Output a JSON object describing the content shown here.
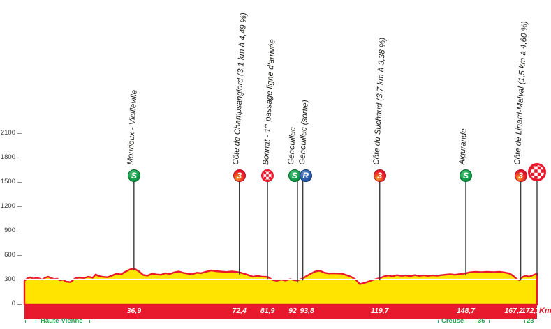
{
  "chart_data": {
    "type": "area",
    "description": "Cycling stage elevation profile",
    "x_unit_label": "Km",
    "km_total": 172.7,
    "y_axis": {
      "ticks": [
        2100,
        1800,
        1500,
        1200,
        900,
        600,
        300,
        0
      ]
    },
    "profile": [
      [
        0,
        280
      ],
      [
        1,
        310
      ],
      [
        2,
        322
      ],
      [
        3,
        305
      ],
      [
        4,
        316
      ],
      [
        5,
        308
      ],
      [
        6,
        295
      ],
      [
        7,
        318
      ],
      [
        8,
        330
      ],
      [
        9,
        314
      ],
      [
        10,
        300
      ],
      [
        11,
        306
      ],
      [
        12,
        286
      ],
      [
        13,
        296
      ],
      [
        14,
        270
      ],
      [
        15.5,
        264
      ],
      [
        17,
        308
      ],
      [
        18.5,
        320
      ],
      [
        20,
        314
      ],
      [
        21.5,
        330
      ],
      [
        23,
        318
      ],
      [
        24,
        358
      ],
      [
        25,
        338
      ],
      [
        26.5,
        328
      ],
      [
        28,
        324
      ],
      [
        29.5,
        344
      ],
      [
        31,
        368
      ],
      [
        32.5,
        358
      ],
      [
        34,
        392
      ],
      [
        35.5,
        418
      ],
      [
        36.9,
        432
      ],
      [
        38.5,
        398
      ],
      [
        40,
        352
      ],
      [
        41.5,
        344
      ],
      [
        43,
        368
      ],
      [
        44.5,
        358
      ],
      [
        46,
        354
      ],
      [
        47.5,
        374
      ],
      [
        49,
        364
      ],
      [
        50.5,
        384
      ],
      [
        52,
        394
      ],
      [
        53.5,
        378
      ],
      [
        55,
        368
      ],
      [
        56.5,
        360
      ],
      [
        58,
        380
      ],
      [
        59.5,
        374
      ],
      [
        61,
        390
      ],
      [
        63,
        408
      ],
      [
        64.5,
        398
      ],
      [
        66,
        394
      ],
      [
        68,
        388
      ],
      [
        70,
        394
      ],
      [
        72.4,
        384
      ],
      [
        74,
        368
      ],
      [
        75.5,
        350
      ],
      [
        77,
        330
      ],
      [
        78.5,
        340
      ],
      [
        80,
        332
      ],
      [
        81.9,
        328
      ],
      [
        83.5,
        292
      ],
      [
        85,
        280
      ],
      [
        86.5,
        296
      ],
      [
        88,
        284
      ],
      [
        89.5,
        300
      ],
      [
        91,
        288
      ],
      [
        92,
        284
      ],
      [
        93.8,
        310
      ],
      [
        95,
        338
      ],
      [
        96.5,
        368
      ],
      [
        98,
        394
      ],
      [
        99.5,
        404
      ],
      [
        101,
        380
      ],
      [
        102.5,
        370
      ],
      [
        104,
        372
      ],
      [
        105.5,
        370
      ],
      [
        107,
        368
      ],
      [
        108.5,
        350
      ],
      [
        110,
        330
      ],
      [
        111.5,
        298
      ],
      [
        113,
        240
      ],
      [
        114.5,
        254
      ],
      [
        116,
        272
      ],
      [
        117.5,
        292
      ],
      [
        119.7,
        312
      ],
      [
        121,
        332
      ],
      [
        122.5,
        346
      ],
      [
        124,
        334
      ],
      [
        125.5,
        350
      ],
      [
        127,
        340
      ],
      [
        128.5,
        346
      ],
      [
        130,
        336
      ],
      [
        131.5,
        350
      ],
      [
        133,
        340
      ],
      [
        134.5,
        346
      ],
      [
        136,
        340
      ],
      [
        137.5,
        346
      ],
      [
        139,
        342
      ],
      [
        140.5,
        350
      ],
      [
        142,
        356
      ],
      [
        143.5,
        360
      ],
      [
        145,
        354
      ],
      [
        146.5,
        362
      ],
      [
        148.7,
        372
      ],
      [
        150,
        384
      ],
      [
        152,
        390
      ],
      [
        154,
        386
      ],
      [
        156,
        390
      ],
      [
        158,
        386
      ],
      [
        160,
        390
      ],
      [
        161.5,
        384
      ],
      [
        163,
        374
      ],
      [
        164,
        358
      ],
      [
        165,
        330
      ],
      [
        166,
        298
      ],
      [
        166.8,
        288
      ],
      [
        167.2,
        310
      ],
      [
        168,
        330
      ],
      [
        169,
        342
      ],
      [
        170,
        330
      ],
      [
        171,
        344
      ],
      [
        172,
        358
      ],
      [
        172.7,
        370
      ]
    ],
    "markers": [
      {
        "id": "mourioux",
        "km": 36.9,
        "km_label": "36,9",
        "label": "Mourioux - Vieilleville",
        "icon": "sprint",
        "icon_text": "S"
      },
      {
        "id": "champsanglard",
        "km": 72.4,
        "km_label": "72,4",
        "label": "Côte de Champsanglard (3,1 km à 4,49 %)",
        "icon": "cat3",
        "icon_text": "3"
      },
      {
        "id": "bonnat",
        "km": 81.9,
        "km_label": "81,9",
        "label_parts": [
          "Bonnat - 1",
          "er",
          " passage ligne d'arrivée"
        ],
        "icon": "checker",
        "icon_text": ""
      },
      {
        "id": "genouillac",
        "km": 92,
        "km_label": "92",
        "label": "Genouillac",
        "icon": "sprint",
        "icon_text": "S"
      },
      {
        "id": "genouillac-sortie",
        "km": 93.8,
        "km_label": "93,8",
        "label": "Genouillac (sortie)",
        "icon": "feed",
        "icon_text": "R"
      },
      {
        "id": "suchaud",
        "km": 119.7,
        "km_label": "119,7",
        "label": "Côte du Suchaud (3,7 km à 3,38 %)",
        "icon": "cat3",
        "icon_text": "3"
      },
      {
        "id": "aigurande",
        "km": 148.7,
        "km_label": "148,7",
        "label": "Aigurande",
        "icon": "sprint",
        "icon_text": "S"
      },
      {
        "id": "linard-malval",
        "km": 167.2,
        "km_label": "167,2",
        "label": "Côte de Linard-Malval (1,5 km à 4,60 %)",
        "icon": "cat3",
        "icon_text": "3"
      },
      {
        "id": "arrivee",
        "km": 172.7,
        "km_label": "172,7",
        "label": "",
        "icon": "finish",
        "icon_text": ""
      }
    ]
  },
  "distance_bar": {
    "unit_label": "Km"
  },
  "departments": {
    "labels": [
      "Haute-Vienne",
      "Creuse",
      "36",
      "23"
    ]
  },
  "colors": {
    "profile_fill": "#ffe400",
    "profile_stroke": "#e8192c",
    "distance_bar": "#e8192c",
    "green": "#2aa457",
    "sprint_green": "#12a04c",
    "feed_blue": "#2a5caa",
    "cat3_red": "#e8192c",
    "stem": "#3b3b3b",
    "gridline_300": "#ffffff"
  }
}
